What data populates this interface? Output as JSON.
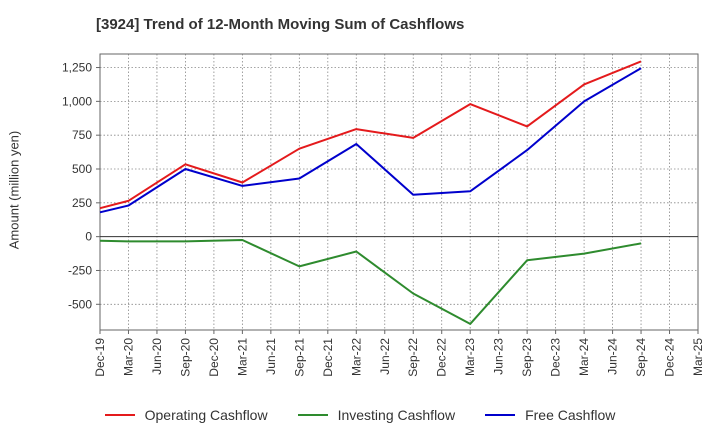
{
  "chart_data": {
    "type": "line",
    "title": "[3924]  Trend of 12-Month Moving Sum of Cashflows",
    "ylabel": "Amount (million yen)",
    "xlabel": "",
    "categories": [
      "Dec-19",
      "Mar-20",
      "Jun-20",
      "Sep-20",
      "Dec-20",
      "Mar-21",
      "Jun-21",
      "Sep-21",
      "Dec-21",
      "Mar-22",
      "Jun-22",
      "Sep-22",
      "Dec-22",
      "Mar-23",
      "Jun-23",
      "Sep-23",
      "Dec-23",
      "Mar-24",
      "Jun-24",
      "Sep-24",
      "Dec-24",
      "Mar-25"
    ],
    "yticks": [
      -500,
      -250,
      0,
      250,
      500,
      750,
      1000,
      1250
    ],
    "ytick_labels": [
      "-500",
      "-250",
      "0",
      "250",
      "500",
      "750",
      "1,000",
      "1,250"
    ],
    "ylim": [
      -690,
      1350
    ],
    "grid": true,
    "legend_position": "bottom",
    "series": [
      {
        "name": "Operating Cashflow",
        "color": "#e41a1c",
        "points": [
          [
            "Dec-19",
            210
          ],
          [
            "Mar-20",
            265
          ],
          [
            "Sep-20",
            535
          ],
          [
            "Mar-21",
            400
          ],
          [
            "Sep-21",
            650
          ],
          [
            "Mar-22",
            795
          ],
          [
            "Sep-22",
            730
          ],
          [
            "Mar-23",
            980
          ],
          [
            "Sep-23",
            815
          ],
          [
            "Mar-24",
            1125
          ],
          [
            "Sep-24",
            1295
          ]
        ]
      },
      {
        "name": "Investing Cashflow",
        "color": "#2e8b2e",
        "points": [
          [
            "Dec-19",
            -30
          ],
          [
            "Mar-20",
            -35
          ],
          [
            "Sep-20",
            -35
          ],
          [
            "Mar-21",
            -25
          ],
          [
            "Sep-21",
            -220
          ],
          [
            "Mar-22",
            -110
          ],
          [
            "Sep-22",
            -420
          ],
          [
            "Mar-23",
            -645
          ],
          [
            "Sep-23",
            -175
          ],
          [
            "Mar-24",
            -125
          ],
          [
            "Sep-24",
            -50
          ]
        ]
      },
      {
        "name": "Free Cashflow",
        "color": "#0000cc",
        "points": [
          [
            "Dec-19",
            180
          ],
          [
            "Mar-20",
            230
          ],
          [
            "Sep-20",
            500
          ],
          [
            "Mar-21",
            375
          ],
          [
            "Sep-21",
            430
          ],
          [
            "Mar-22",
            685
          ],
          [
            "Sep-22",
            310
          ],
          [
            "Mar-23",
            335
          ],
          [
            "Sep-23",
            640
          ],
          [
            "Mar-24",
            1000
          ],
          [
            "Sep-24",
            1245
          ]
        ]
      }
    ]
  }
}
